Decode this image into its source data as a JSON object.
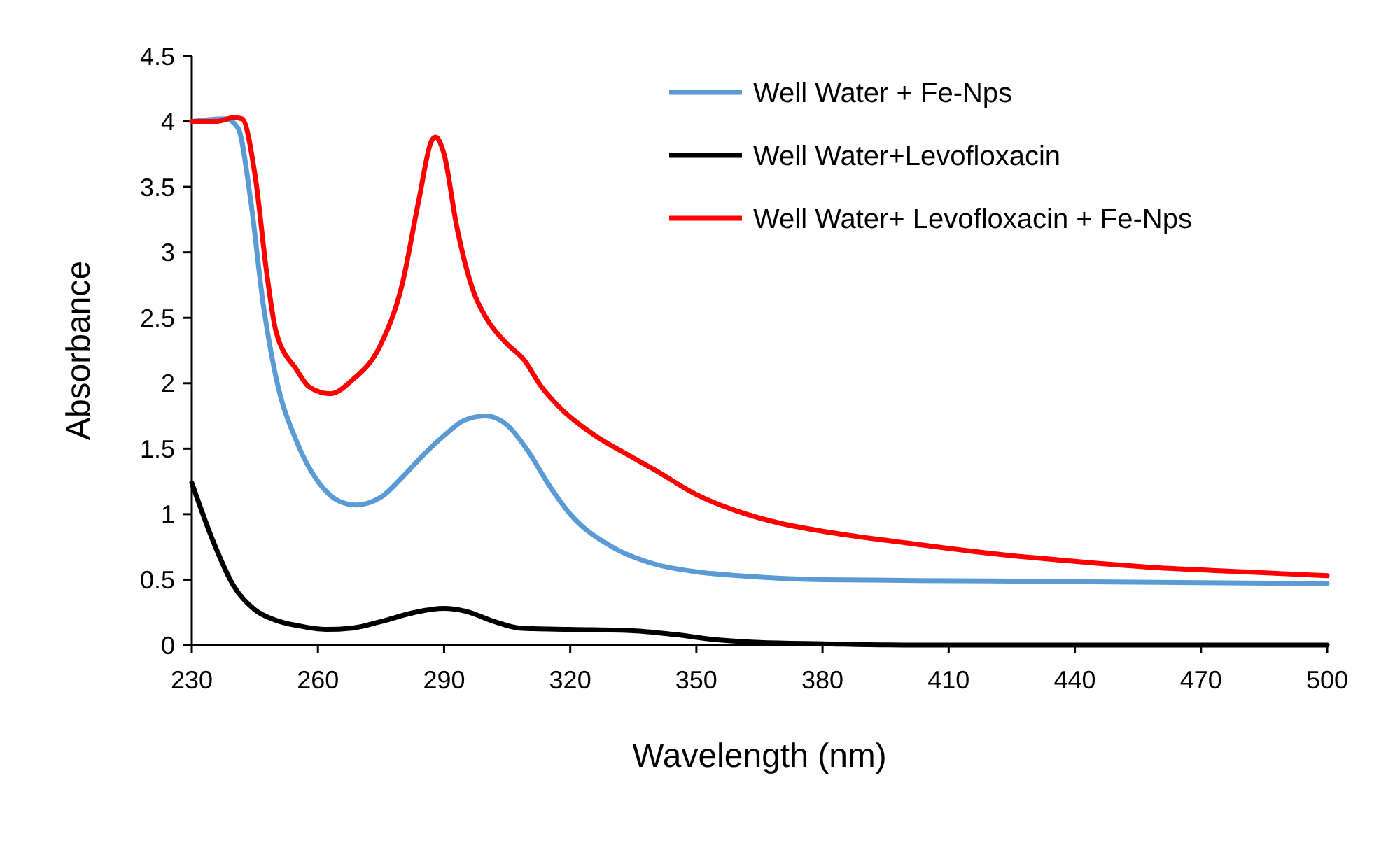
{
  "chart_data": {
    "type": "line",
    "xlabel": "Wavelength (nm)",
    "ylabel": "Absorbance",
    "xlim": [
      230,
      500
    ],
    "xticks": [
      230,
      260,
      290,
      320,
      350,
      380,
      410,
      440,
      470,
      500
    ],
    "ylim": [
      0,
      4.5
    ],
    "yticks": [
      0,
      0.5,
      1,
      1.5,
      2,
      2.5,
      3,
      3.5,
      4,
      4.5
    ],
    "legend": "top right",
    "marker": "none",
    "line_style": "solid",
    "series": [
      {
        "name": "Well Water + Fe-Nps",
        "color": "#5b9bd5",
        "x": [
          230,
          238,
          241,
          244,
          247,
          250,
          255,
          260,
          265,
          269,
          275,
          280,
          285,
          290,
          295,
          300,
          305,
          310,
          315,
          320,
          330,
          340,
          350,
          360,
          380,
          420,
          500
        ],
        "values": [
          4.0,
          4.02,
          3.95,
          3.4,
          2.6,
          2.05,
          1.55,
          1.25,
          1.1,
          1.07,
          1.13,
          1.28,
          1.45,
          1.6,
          1.72,
          1.75,
          1.68,
          1.48,
          1.22,
          1.0,
          0.75,
          0.62,
          0.56,
          0.53,
          0.5,
          0.49,
          0.47
        ]
      },
      {
        "name": "Well Water+Levofloxacin",
        "color": "#000000",
        "x": [
          230,
          235,
          240,
          245,
          250,
          255,
          262,
          268,
          275,
          283,
          290,
          295,
          302,
          308,
          320,
          335,
          345,
          355,
          365,
          380,
          400,
          500
        ],
        "values": [
          1.24,
          0.8,
          0.45,
          0.27,
          0.19,
          0.15,
          0.12,
          0.13,
          0.18,
          0.25,
          0.28,
          0.26,
          0.18,
          0.13,
          0.12,
          0.11,
          0.08,
          0.04,
          0.02,
          0.01,
          0,
          0
        ]
      },
      {
        "name": "Well Water+ Levofloxacin + Fe-Nps",
        "color": "#ff0000",
        "x": [
          230,
          236,
          240,
          242,
          245,
          248,
          250,
          255,
          258,
          263,
          268,
          275,
          280,
          284,
          287,
          288,
          290,
          293,
          297,
          300,
          305,
          309,
          313,
          318,
          325,
          335,
          340,
          350,
          360,
          370,
          380,
          400,
          420,
          440,
          460,
          480,
          500
        ],
        "values": [
          4.0,
          4.0,
          4.03,
          4.02,
          3.6,
          2.8,
          2.4,
          2.1,
          1.97,
          1.92,
          2.02,
          2.3,
          2.75,
          3.4,
          3.85,
          3.88,
          3.75,
          3.2,
          2.7,
          2.5,
          2.3,
          2.18,
          1.98,
          1.8,
          1.62,
          1.43,
          1.34,
          1.15,
          1.02,
          0.93,
          0.87,
          0.78,
          0.7,
          0.64,
          0.59,
          0.56,
          0.53
        ]
      }
    ]
  }
}
